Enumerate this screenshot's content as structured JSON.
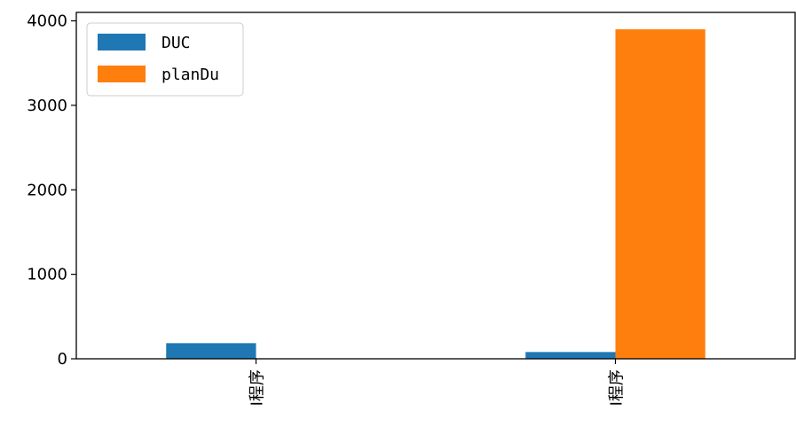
{
  "chart_data": {
    "type": "bar",
    "categories": [
      "I程序",
      "I程序"
    ],
    "series": [
      {
        "name": "DUC",
        "values": [
          185,
          80
        ],
        "color": "#1f77b4"
      },
      {
        "name": "planDu",
        "values": [
          0,
          3900
        ],
        "color": "#ff7f0e"
      }
    ],
    "title": "",
    "xlabel": "",
    "ylabel": "",
    "ylim": [
      0,
      4100
    ],
    "yticks": [
      0,
      1000,
      2000,
      3000,
      4000
    ],
    "ytick_labels": [
      "0",
      "1000",
      "2000",
      "3000",
      "4000"
    ],
    "grid": false,
    "legend_position": "top-left"
  }
}
